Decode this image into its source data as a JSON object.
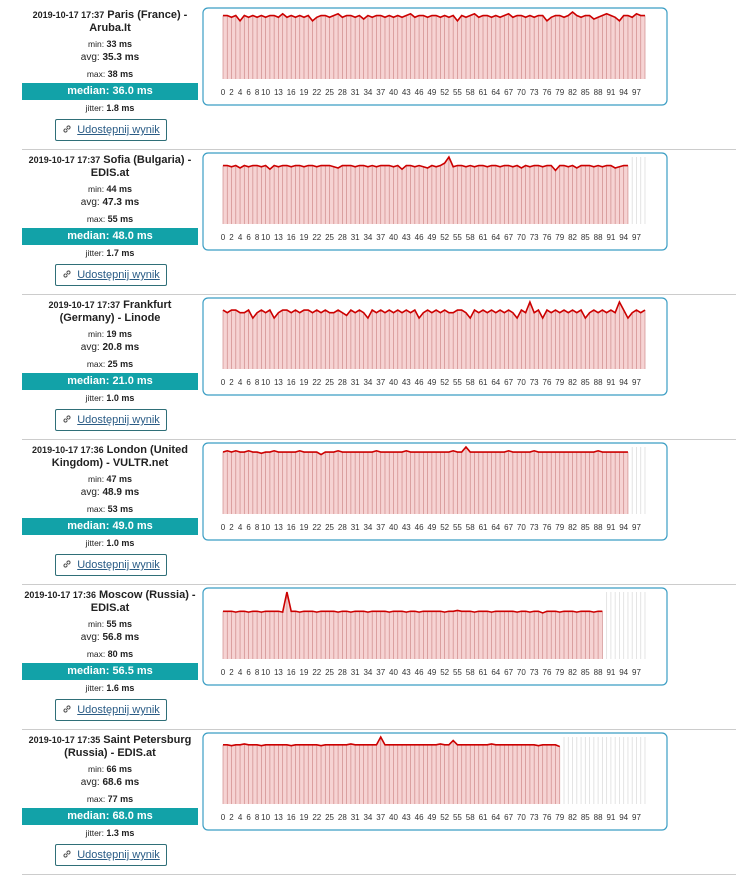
{
  "labels": {
    "min": "min:",
    "avg": "avg:",
    "max": "max:",
    "median": "median:",
    "jitter": "jitter:",
    "share": "Udostępnij wynik"
  },
  "results": [
    {
      "time": "2019-10-17 17:37",
      "server": "Paris (France) - Aruba.It",
      "min": "33 ms",
      "avg": "35.3 ms",
      "max": "38 ms",
      "median": "36.0 ms",
      "jitter": "1.8 ms"
    },
    {
      "time": "2019-10-17 17:37",
      "server": "Sofia (Bulgaria) - EDIS.at",
      "min": "44 ms",
      "avg": "47.3 ms",
      "max": "55 ms",
      "median": "48.0 ms",
      "jitter": "1.7 ms"
    },
    {
      "time": "2019-10-17 17:37",
      "server": "Frankfurt (Germany) - Linode",
      "min": "19 ms",
      "avg": "20.8 ms",
      "max": "25 ms",
      "median": "21.0 ms",
      "jitter": "1.0 ms"
    },
    {
      "time": "2019-10-17 17:36",
      "server": "London (United Kingdom) - VULTR.net",
      "min": "47 ms",
      "avg": "48.9 ms",
      "max": "53 ms",
      "median": "49.0 ms",
      "jitter": "1.0 ms"
    },
    {
      "time": "2019-10-17 17:36",
      "server": "Moscow (Russia) - EDIS.at",
      "min": "55 ms",
      "avg": "56.8 ms",
      "max": "80 ms",
      "median": "56.5 ms",
      "jitter": "1.6 ms"
    },
    {
      "time": "2019-10-17 17:35",
      "server": "Saint Petersburg (Russia) - EDIS.at",
      "min": "66 ms",
      "avg": "68.6 ms",
      "max": "77 ms",
      "median": "68.0 ms",
      "jitter": "1.3 ms"
    }
  ],
  "chart_data": [
    {
      "type": "line",
      "color": "#cc0000",
      "xlim": [
        0,
        99
      ],
      "ylim": [
        0,
        38
      ],
      "xticks": [
        0,
        2,
        4,
        6,
        8,
        10,
        13,
        16,
        19,
        22,
        25,
        28,
        31,
        34,
        37,
        40,
        43,
        46,
        49,
        52,
        55,
        58,
        61,
        64,
        67,
        70,
        73,
        76,
        79,
        82,
        85,
        88,
        91,
        94,
        97
      ],
      "values": [
        36,
        36,
        35,
        36,
        33,
        36,
        35,
        36,
        35,
        36,
        35,
        36,
        36,
        35,
        37,
        35,
        36,
        35,
        36,
        35,
        36,
        33,
        35,
        36,
        36,
        35,
        36,
        37,
        35,
        36,
        36,
        35,
        36,
        34,
        36,
        35,
        36,
        36,
        35,
        36,
        35,
        36,
        35,
        36,
        37,
        35,
        36,
        36,
        35,
        36,
        36,
        35,
        36,
        35,
        36,
        33,
        36,
        35,
        36,
        37,
        35,
        36,
        36,
        35,
        36,
        35,
        36,
        37,
        35,
        36,
        36,
        35,
        36,
        35,
        36,
        36,
        33,
        35,
        36,
        36,
        35,
        36,
        38,
        36,
        35,
        36,
        36,
        34,
        35,
        36,
        37,
        36,
        35,
        33,
        36,
        36,
        35,
        37,
        36,
        36
      ]
    },
    {
      "type": "line",
      "color": "#cc0000",
      "xlim": [
        0,
        99
      ],
      "ylim": [
        0,
        55
      ],
      "xticks": [
        0,
        2,
        4,
        6,
        8,
        10,
        13,
        16,
        19,
        22,
        25,
        28,
        31,
        34,
        37,
        40,
        43,
        46,
        49,
        52,
        55,
        58,
        61,
        64,
        67,
        70,
        73,
        76,
        79,
        82,
        85,
        88,
        91,
        94,
        97
      ],
      "values": [
        48,
        48,
        47,
        48,
        46,
        48,
        47,
        48,
        48,
        47,
        48,
        45,
        48,
        47,
        48,
        48,
        47,
        48,
        48,
        47,
        48,
        48,
        47,
        48,
        48,
        48,
        47,
        46,
        48,
        48,
        48,
        47,
        48,
        48,
        47,
        48,
        47,
        48,
        48,
        48,
        47,
        48,
        45,
        48,
        48,
        47,
        48,
        47,
        46,
        48,
        47,
        48,
        50,
        55,
        47,
        48,
        48,
        47,
        48,
        47,
        48,
        48,
        47,
        48,
        48,
        47,
        48,
        48,
        47,
        48,
        46,
        48,
        47,
        48,
        48,
        47,
        48,
        48,
        44,
        48,
        48,
        47,
        48,
        46,
        48,
        48,
        48,
        47,
        48,
        47,
        48,
        48,
        46,
        47,
        48,
        48,
        null,
        null,
        null,
        null
      ]
    },
    {
      "type": "line",
      "color": "#cc0000",
      "xlim": [
        0,
        99
      ],
      "ylim": [
        0,
        25
      ],
      "xticks": [
        0,
        2,
        4,
        6,
        8,
        10,
        13,
        16,
        19,
        22,
        25,
        28,
        31,
        34,
        37,
        40,
        43,
        46,
        49,
        52,
        55,
        58,
        61,
        64,
        67,
        70,
        73,
        76,
        79,
        82,
        85,
        88,
        91,
        94,
        97
      ],
      "values": [
        22,
        21,
        22,
        22,
        21,
        21,
        22,
        19,
        21,
        22,
        21,
        22,
        19,
        21,
        22,
        22,
        21,
        22,
        21,
        22,
        22,
        21,
        22,
        21,
        22,
        21,
        21,
        22,
        21,
        20,
        22,
        21,
        22,
        21,
        19,
        22,
        21,
        22,
        21,
        22,
        21,
        22,
        21,
        22,
        21,
        22,
        19,
        21,
        22,
        21,
        22,
        21,
        22,
        21,
        21,
        22,
        22,
        21,
        19,
        22,
        21,
        22,
        21,
        22,
        21,
        22,
        21,
        22,
        21,
        19,
        22,
        21,
        25,
        21,
        22,
        19,
        22,
        21,
        22,
        21,
        22,
        21,
        22,
        21,
        22,
        19,
        21,
        22,
        21,
        22,
        21,
        22,
        21,
        25,
        22,
        19,
        21,
        22,
        21,
        22
      ]
    },
    {
      "type": "line",
      "color": "#cc0000",
      "xlim": [
        0,
        99
      ],
      "ylim": [
        0,
        53
      ],
      "xticks": [
        0,
        2,
        4,
        6,
        8,
        10,
        13,
        16,
        19,
        22,
        25,
        28,
        31,
        34,
        37,
        40,
        43,
        46,
        49,
        52,
        55,
        58,
        61,
        64,
        67,
        70,
        73,
        76,
        79,
        82,
        85,
        88,
        91,
        94,
        97
      ],
      "values": [
        49,
        50,
        49,
        50,
        49,
        49,
        50,
        49,
        49,
        48,
        49,
        49,
        50,
        49,
        49,
        49,
        49,
        49,
        50,
        49,
        49,
        49,
        49,
        47,
        49,
        49,
        49,
        50,
        49,
        49,
        49,
        49,
        49,
        49,
        49,
        49,
        50,
        49,
        49,
        49,
        49,
        49,
        49,
        50,
        49,
        49,
        49,
        49,
        49,
        49,
        49,
        49,
        49,
        49,
        50,
        49,
        49,
        53,
        49,
        49,
        49,
        49,
        49,
        49,
        49,
        49,
        49,
        50,
        49,
        49,
        49,
        49,
        49,
        50,
        49,
        49,
        49,
        49,
        49,
        49,
        49,
        49,
        49,
        49,
        49,
        49,
        49,
        49,
        50,
        49,
        49,
        49,
        49,
        49,
        49,
        49,
        null,
        null,
        null,
        null
      ]
    },
    {
      "type": "line",
      "color": "#cc0000",
      "xlim": [
        0,
        99
      ],
      "ylim": [
        0,
        80
      ],
      "xticks": [
        0,
        2,
        4,
        6,
        8,
        10,
        13,
        16,
        19,
        22,
        25,
        28,
        31,
        34,
        37,
        40,
        43,
        46,
        49,
        52,
        55,
        58,
        61,
        64,
        67,
        70,
        73,
        76,
        79,
        82,
        85,
        88,
        91,
        94,
        97
      ],
      "values": [
        57,
        57,
        57,
        56,
        57,
        57,
        56,
        57,
        57,
        56,
        57,
        57,
        57,
        57,
        56,
        80,
        57,
        57,
        56,
        57,
        57,
        57,
        56,
        57,
        57,
        57,
        57,
        56,
        57,
        57,
        56,
        57,
        57,
        57,
        56,
        57,
        57,
        57,
        57,
        56,
        57,
        57,
        57,
        56,
        57,
        57,
        56,
        57,
        57,
        57,
        57,
        57,
        56,
        57,
        57,
        58,
        57,
        57,
        57,
        56,
        57,
        57,
        57,
        56,
        57,
        57,
        57,
        57,
        57,
        56,
        57,
        57,
        56,
        57,
        57,
        55,
        57,
        57,
        57,
        56,
        57,
        57,
        57,
        56,
        57,
        57,
        57,
        56,
        57,
        57,
        null,
        null,
        null,
        null,
        null,
        null,
        null,
        null,
        null,
        null
      ]
    },
    {
      "type": "line",
      "color": "#cc0000",
      "xlim": [
        0,
        99
      ],
      "ylim": [
        0,
        77
      ],
      "xticks": [
        0,
        2,
        4,
        6,
        8,
        10,
        13,
        16,
        19,
        22,
        25,
        28,
        31,
        34,
        37,
        40,
        43,
        46,
        49,
        52,
        55,
        58,
        61,
        64,
        67,
        70,
        73,
        76,
        79,
        82,
        85,
        88,
        91,
        94,
        97
      ],
      "values": [
        68,
        68,
        67,
        68,
        68,
        69,
        68,
        68,
        68,
        67,
        68,
        68,
        68,
        68,
        68,
        68,
        67,
        68,
        68,
        68,
        68,
        68,
        68,
        67,
        68,
        68,
        68,
        68,
        68,
        68,
        69,
        68,
        68,
        68,
        68,
        68,
        68,
        77,
        68,
        68,
        68,
        68,
        68,
        68,
        68,
        68,
        68,
        68,
        68,
        68,
        68,
        69,
        68,
        68,
        73,
        68,
        68,
        68,
        68,
        68,
        68,
        68,
        68,
        69,
        68,
        68,
        68,
        68,
        68,
        68,
        68,
        68,
        68,
        68,
        67,
        68,
        68,
        68,
        68,
        66,
        null,
        null,
        null,
        null,
        null,
        null,
        null,
        null,
        null,
        null,
        null,
        null,
        null,
        null,
        null,
        null,
        null,
        null,
        null,
        null
      ]
    }
  ]
}
